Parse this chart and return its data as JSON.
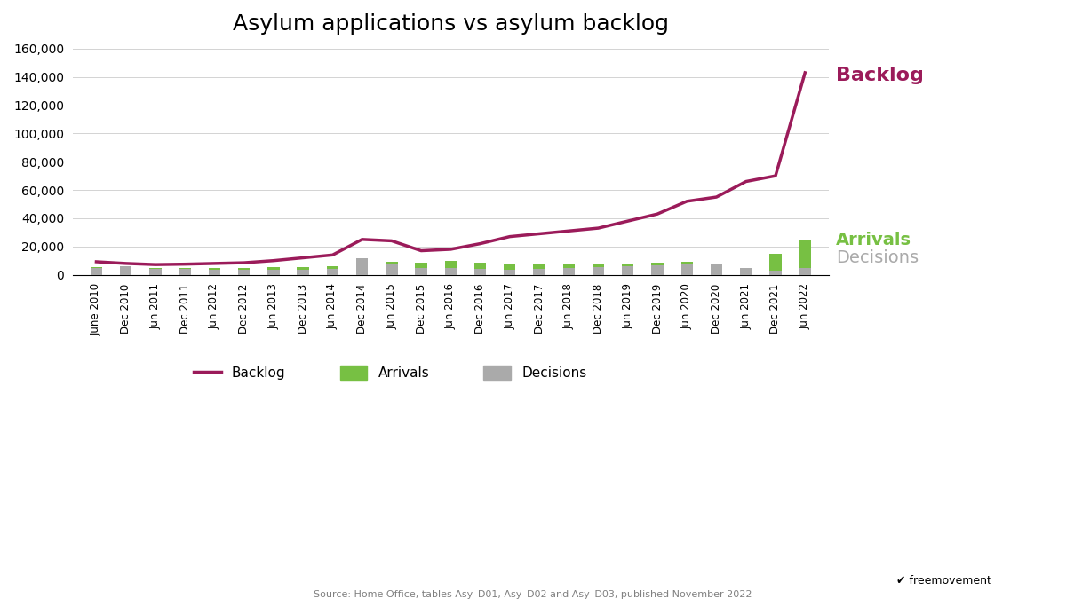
{
  "title": "Asylum applications vs asylum backlog",
  "backlog_color": "#9B1B5A",
  "arrivals_color": "#77C043",
  "decisions_color": "#AAAAAA",
  "source_text": "Source: Home Office, tables Asy_D01, Asy_D02 and Asy_D03, published November 2022",
  "ylim": [
    0,
    160000
  ],
  "yticks": [
    0,
    20000,
    40000,
    60000,
    80000,
    100000,
    120000,
    140000,
    160000
  ],
  "x_labels": [
    "June 2010",
    "Dec 2010",
    "Jun 2011",
    "Dec 2011",
    "Jun 2012",
    "Dec 2012",
    "Jun 2013",
    "Dec 2013",
    "Jun 2014",
    "Dec 2014",
    "Jun 2015",
    "Dec 2015",
    "Jun 2016",
    "Dec 2016",
    "Jun 2017",
    "Dec 2017",
    "Jun 2018",
    "Dec 2018",
    "Jun 2019",
    "Dec 2019",
    "Jun 2020",
    "Dec 2020",
    "Jun 2021",
    "Dec 2021",
    "Jun 2022"
  ],
  "backlog": [
    9200,
    8000,
    7200,
    7500,
    8000,
    8500,
    10000,
    12000,
    14000,
    25000,
    24000,
    17000,
    18000,
    22000,
    27000,
    29000,
    31000,
    33000,
    38000,
    43000,
    52000,
    55000,
    66000,
    70000,
    143000
  ],
  "arrivals": [
    5500,
    5000,
    4500,
    4500,
    5000,
    4800,
    5200,
    5500,
    6000,
    7000,
    9000,
    8500,
    9500,
    8500,
    7500,
    7000,
    7500,
    7500,
    8000,
    8500,
    9000,
    8000,
    5000,
    15000,
    24000
  ],
  "decisions": [
    5000,
    6000,
    4000,
    4000,
    3500,
    3500,
    3500,
    3500,
    4000,
    12000,
    8000,
    5000,
    5000,
    4000,
    3500,
    4000,
    5000,
    5500,
    6000,
    6500,
    7000,
    7000,
    5000,
    3000,
    5000
  ],
  "annotation_backlog": "Backlog",
  "annotation_arrivals": "Arrivals",
  "annotation_decisions": "Decisions",
  "legend_backlog": "Backlog",
  "legend_arrivals": "Arrivals",
  "legend_decisions": "Decisions"
}
